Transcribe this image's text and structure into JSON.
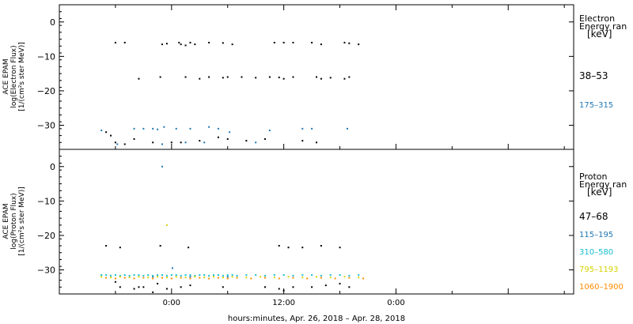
{
  "chart_data": [
    {
      "type": "scatter",
      "panel": "electron",
      "ylabel_lines": [
        "ACE EPAM",
        "log(Electron Flux)",
        "[1/(cm²s ster MeV)]"
      ],
      "ylim": [
        -37,
        5
      ],
      "yticks": [
        0,
        -10,
        -20,
        -30
      ],
      "ytick_labels": [
        "0",
        "−10",
        "−20",
        "−30"
      ],
      "legend_title_lines": [
        "Electron",
        "Energy ran",
        "[keV]"
      ],
      "series": [
        {
          "name": "38–53",
          "color": "#000000",
          "points": [
            [
              -6,
              -6
            ],
            [
              -5,
              -6
            ],
            [
              -1,
              -6.5
            ],
            [
              -0.5,
              -6.3
            ],
            [
              0.8,
              -6
            ],
            [
              1,
              -6.5
            ],
            [
              1.5,
              -6.8
            ],
            [
              2,
              -6
            ],
            [
              2.5,
              -6.5
            ],
            [
              4,
              -6
            ],
            [
              5.5,
              -6.1
            ],
            [
              6.5,
              -6.5
            ],
            [
              11,
              -6
            ],
            [
              12,
              -6
            ],
            [
              13,
              -6
            ],
            [
              15,
              -6
            ],
            [
              16,
              -6.5
            ],
            [
              18.5,
              -6
            ],
            [
              19,
              -6.2
            ],
            [
              20,
              -6.5
            ],
            [
              -3.5,
              -16.5
            ],
            [
              -1.2,
              -16
            ],
            [
              1.5,
              -16
            ],
            [
              3,
              -16.5
            ],
            [
              4,
              -16
            ],
            [
              5.5,
              -16.2
            ],
            [
              6,
              -16
            ],
            [
              7.5,
              -16
            ],
            [
              9,
              -16.2
            ],
            [
              10.5,
              -16
            ],
            [
              11.5,
              -16.1
            ],
            [
              12,
              -16.5
            ],
            [
              13,
              -16
            ],
            [
              15.5,
              -16
            ],
            [
              16,
              -16.5
            ],
            [
              17,
              -16.2
            ],
            [
              18.5,
              -16.5
            ],
            [
              19,
              -16
            ],
            [
              -7,
              -32
            ],
            [
              -6.5,
              -33
            ],
            [
              -6,
              -35
            ],
            [
              -5,
              -35.5
            ],
            [
              -4,
              -34
            ],
            [
              -2,
              -35
            ],
            [
              0,
              -35
            ],
            [
              1,
              -35
            ],
            [
              3,
              -34.5
            ],
            [
              5,
              -33.5
            ],
            [
              6,
              -34
            ],
            [
              8,
              -34.5
            ],
            [
              10,
              -34
            ],
            [
              14,
              -34.5
            ],
            [
              15.5,
              -35
            ]
          ]
        },
        {
          "name": "175–315",
          "color": "#1f77b4",
          "points": [
            [
              -7.5,
              -31.5
            ],
            [
              -5.8,
              -35.5
            ],
            [
              -4,
              -31
            ],
            [
              -3,
              -31
            ],
            [
              -2,
              -31
            ],
            [
              -1.5,
              -31.2
            ],
            [
              -0.8,
              -30.5
            ],
            [
              0.5,
              -31
            ],
            [
              2,
              -31
            ],
            [
              4,
              -30.5
            ],
            [
              5,
              -31
            ],
            [
              6.2,
              -32
            ],
            [
              10.5,
              -31.5
            ],
            [
              14,
              -31
            ],
            [
              15,
              -31
            ],
            [
              18.8,
              -31
            ],
            [
              -1,
              -35.5
            ],
            [
              1.5,
              -35
            ],
            [
              3.5,
              -35
            ],
            [
              9,
              -35
            ]
          ]
        }
      ]
    },
    {
      "type": "scatter",
      "panel": "proton",
      "ylabel_lines": [
        "ACE EPAM",
        "log(Proton Flux)",
        "[1/(cm²s ster MeV)]"
      ],
      "ylim": [
        -37,
        5
      ],
      "yticks": [
        0,
        -10,
        -20,
        -30
      ],
      "ytick_labels": [
        "0",
        "−10",
        "−20",
        "−30"
      ],
      "legend_title_lines": [
        "Proton",
        "Energy ran",
        "[keV]"
      ],
      "series": [
        {
          "name": "47–68",
          "color": "#000000",
          "points": [
            [
              -7,
              -23
            ],
            [
              -5.5,
              -23.5
            ],
            [
              -1.2,
              -23
            ],
            [
              1.8,
              -23.5
            ],
            [
              11.5,
              -23
            ],
            [
              12.5,
              -23.5
            ],
            [
              14,
              -23.5
            ],
            [
              16,
              -23
            ],
            [
              18,
              -23.5
            ],
            [
              -6,
              -33.5
            ],
            [
              -5.5,
              -35
            ],
            [
              -4,
              -35.5
            ],
            [
              -3.5,
              -35
            ],
            [
              -3,
              -35
            ],
            [
              -2,
              -36.5
            ],
            [
              -1.5,
              -34
            ],
            [
              -0.5,
              -35.5
            ],
            [
              1,
              -35
            ],
            [
              2,
              -34.5
            ],
            [
              5.5,
              -35
            ],
            [
              10,
              -35
            ],
            [
              11.5,
              -35.5
            ],
            [
              12,
              -36
            ],
            [
              13,
              -35
            ],
            [
              15,
              -35
            ],
            [
              16.5,
              -34.5
            ],
            [
              18,
              -34
            ],
            [
              19,
              -35
            ]
          ]
        },
        {
          "name": "115–195",
          "color": "#1f77b4",
          "points": [
            [
              -1,
              0
            ],
            [
              0.1,
              -29.5
            ],
            [
              -2,
              -32
            ],
            [
              2,
              -32
            ],
            [
              6,
              -32
            ]
          ]
        },
        {
          "name": "310–580",
          "color": "#17becf",
          "points": [
            [
              -7.5,
              -31.5
            ],
            [
              -7,
              -31.5
            ],
            [
              -6.5,
              -31.7
            ],
            [
              -6,
              -31.5
            ],
            [
              -5.5,
              -31.7
            ],
            [
              -5,
              -31.5
            ],
            [
              -4.5,
              -31.7
            ],
            [
              -4,
              -31.5
            ],
            [
              -3.5,
              -31.5
            ],
            [
              -3,
              -31.7
            ],
            [
              -2.5,
              -31.5
            ],
            [
              -2,
              -31.7
            ],
            [
              -1.5,
              -31.5
            ],
            [
              -1,
              -31.5
            ],
            [
              -0.5,
              -31.7
            ],
            [
              0,
              -31.5
            ],
            [
              0.5,
              -31.5
            ],
            [
              1,
              -31.7
            ],
            [
              1.5,
              -31.5
            ],
            [
              2,
              -31.5
            ],
            [
              2.5,
              -31.7
            ],
            [
              3,
              -31.5
            ],
            [
              3.5,
              -31.5
            ],
            [
              4,
              -31.7
            ],
            [
              4.5,
              -31.5
            ],
            [
              5,
              -31.5
            ],
            [
              5.5,
              -31.7
            ],
            [
              6,
              -31.5
            ],
            [
              6.5,
              -31.5
            ],
            [
              7,
              -31.7
            ],
            [
              8,
              -31.5
            ],
            [
              9,
              -31.5
            ],
            [
              10,
              -31.7
            ],
            [
              11,
              -31.5
            ],
            [
              12,
              -31.5
            ],
            [
              13,
              -31.7
            ],
            [
              14,
              -31.5
            ],
            [
              15,
              -31.5
            ],
            [
              16,
              -31.7
            ],
            [
              17,
              -31.5
            ],
            [
              18,
              -31.5
            ],
            [
              19,
              -31.7
            ],
            [
              20,
              -31.5
            ]
          ]
        },
        {
          "name": "795–1193",
          "color": "#d4d400",
          "points": [
            [
              -0.5,
              -17
            ],
            [
              -7.5,
              -32
            ],
            [
              -6.5,
              -32.2
            ],
            [
              -5.5,
              -32
            ],
            [
              -4.5,
              -32.2
            ],
            [
              -3.5,
              -32
            ],
            [
              -2.5,
              -32.2
            ],
            [
              -1.5,
              -32
            ],
            [
              -0.5,
              -32.2
            ],
            [
              0.5,
              -32
            ],
            [
              1.5,
              -32.2
            ],
            [
              2.5,
              -32
            ],
            [
              3.5,
              -32.2
            ],
            [
              4.5,
              -32
            ],
            [
              5.5,
              -32.2
            ],
            [
              6.5,
              -32
            ],
            [
              8,
              -32.2
            ],
            [
              9.5,
              -32
            ],
            [
              11,
              -32.2
            ],
            [
              12.5,
              -32
            ],
            [
              14,
              -32.2
            ],
            [
              15.5,
              -32
            ],
            [
              17,
              -32.2
            ],
            [
              18.5,
              -32
            ],
            [
              20,
              -32.2
            ]
          ]
        },
        {
          "name": "1060–1900",
          "color": "#ff8c00",
          "points": [
            [
              -7,
              -32.3
            ],
            [
              -6,
              -32.5
            ],
            [
              -5,
              -32.3
            ],
            [
              -4,
              -32.5
            ],
            [
              -3,
              -32.3
            ],
            [
              -2,
              -32.5
            ],
            [
              -1,
              -32.3
            ],
            [
              0,
              -32.5
            ],
            [
              1,
              -32.3
            ],
            [
              2,
              -32.5
            ],
            [
              3,
              -32.3
            ],
            [
              4,
              -32.5
            ],
            [
              5,
              -32.3
            ],
            [
              6,
              -32.5
            ],
            [
              7,
              -32.3
            ],
            [
              8.5,
              -32.5
            ],
            [
              10,
              -32.3
            ],
            [
              11.5,
              -32.5
            ],
            [
              13,
              -32.3
            ],
            [
              14.5,
              -32.5
            ],
            [
              16,
              -32.3
            ],
            [
              17.5,
              -32.5
            ],
            [
              19,
              -32.3
            ],
            [
              20.5,
              -32.5
            ]
          ]
        }
      ]
    }
  ],
  "x_axis": {
    "xlim": [
      -12,
      43
    ],
    "xticks": [
      0,
      12,
      24,
      36
    ],
    "xtick_labels": [
      "0:00",
      "12:00",
      "0:00"
    ],
    "xtick_label_positions": [
      0,
      24,
      48
    ],
    "xlabel": "hours:minutes, Apr. 26, 2018 – Apr. 28, 2018"
  }
}
